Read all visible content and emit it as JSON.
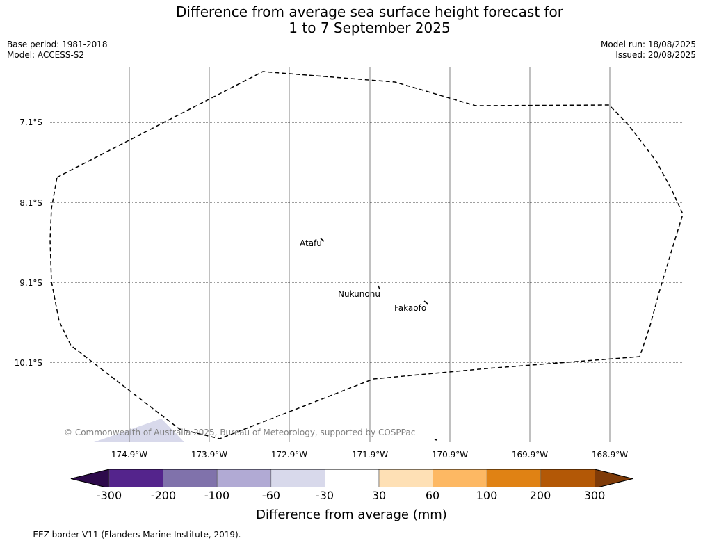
{
  "title": {
    "line1": "Difference from average sea surface height forecast for",
    "line2": "1 to 7 September 2025"
  },
  "meta_left": {
    "base_period": "Base period: 1981-2018",
    "model": "Model: ACCESS-S2"
  },
  "meta_right": {
    "model_run": "Model run: 18/08/2025",
    "issued": "Issued: 20/08/2025"
  },
  "map": {
    "lat_labels": [
      "7.1°S",
      "8.1°S",
      "9.1°S",
      "10.1°S"
    ],
    "lon_labels": [
      "174.9°W",
      "173.9°W",
      "172.9°W",
      "171.9°W",
      "170.9°W",
      "169.9°W",
      "168.9°W"
    ],
    "places": [
      {
        "name": "Atafu"
      },
      {
        "name": "Nukunonu"
      },
      {
        "name": "Fakaofo"
      }
    ],
    "copyright": "© Commonwealth of Australia 2025, Bureau of Meteorology, supported by COSPPac"
  },
  "colorbar": {
    "colors": [
      "#2d0a4b",
      "#54248c",
      "#8072ab",
      "#b1aad4",
      "#d8d9eb",
      "#ffffff",
      "#fee0b5",
      "#fdb863",
      "#e08214",
      "#b35806",
      "#7f3b08"
    ],
    "tick_labels": [
      "-300",
      "-200",
      "-100",
      "-60",
      "-30",
      "30",
      "60",
      "100",
      "200",
      "300"
    ],
    "label": "Difference from average (mm)"
  },
  "footnote": "--  --  -- EEZ border V11 (Flanders Marine Institute, 2019)."
}
